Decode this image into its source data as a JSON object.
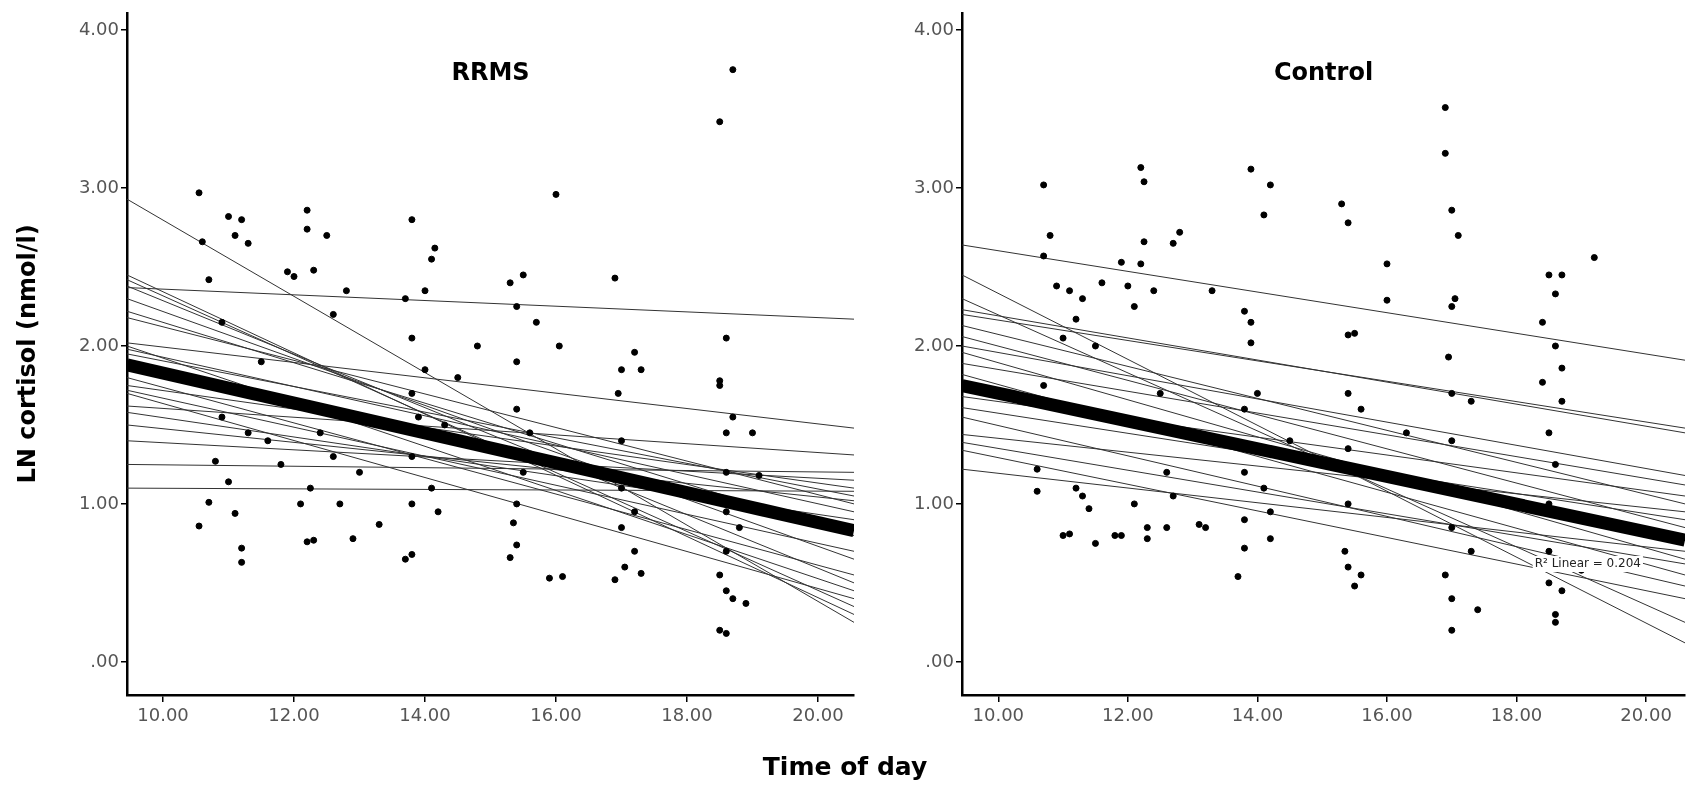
{
  "chart_data": [
    {
      "type": "scatter",
      "title": "RRMS",
      "ylabel": "LN cortisol (nmol/l)",
      "xlabel": "Time of day",
      "xlim": [
        9.45,
        20.55
      ],
      "ylim": [
        -0.21,
        4.11
      ],
      "xticks": [
        {
          "value": 10,
          "label": "10.00"
        },
        {
          "value": 12,
          "label": "12.00"
        },
        {
          "value": 14,
          "label": "14.00"
        },
        {
          "value": 16,
          "label": "16.00"
        },
        {
          "value": 18,
          "label": "18.00"
        },
        {
          "value": 20,
          "label": "20.00"
        }
      ],
      "yticks": [
        {
          "value": 0,
          "label": ".00"
        },
        {
          "value": 1,
          "label": "1.00"
        },
        {
          "value": 2,
          "label": "2.00"
        },
        {
          "value": 3,
          "label": "3.00"
        },
        {
          "value": 4,
          "label": "4.00"
        }
      ],
      "grid": false,
      "legend": false,
      "series": [
        {
          "type": "scatter",
          "marker": "circle",
          "color": "#000000",
          "x": [
            10.55,
            10.6,
            10.7,
            10.55,
            10.7,
            10.8,
            10.9,
            11.0,
            11.1,
            11.2,
            11.3,
            11.0,
            11.2,
            11.2,
            11.1,
            10.9,
            11.3,
            11.5,
            11.6,
            11.8,
            11.9,
            12.0,
            12.1,
            12.2,
            12.2,
            12.3,
            12.25,
            12.3,
            12.2,
            12.4,
            12.5,
            12.6,
            12.8,
            12.6,
            12.7,
            12.9,
            13.3,
            13.0,
            13.8,
            13.7,
            13.8,
            13.8,
            13.8,
            13.8,
            13.7,
            13.8,
            13.9,
            14.0,
            14.1,
            14.15,
            14.0,
            14.1,
            14.2,
            14.3,
            14.5,
            14.8,
            15.3,
            15.4,
            15.4,
            15.4,
            15.4,
            15.35,
            15.4,
            15.3,
            15.5,
            15.5,
            15.6,
            15.7,
            15.9,
            16.0,
            16.05,
            16.1,
            16.9,
            16.95,
            17.0,
            17.0,
            17.0,
            17.0,
            17.05,
            16.9,
            17.2,
            17.3,
            17.2,
            17.3,
            17.2,
            18.5,
            18.7,
            18.6,
            18.5,
            18.5,
            18.6,
            18.7,
            18.6,
            18.6,
            18.6,
            18.5,
            18.6,
            18.5,
            18.6,
            18.7,
            18.8,
            18.9,
            19.0,
            19.1
          ],
          "values": [
            2.97,
            2.66,
            2.42,
            0.86,
            1.01,
            1.27,
            2.15,
            2.82,
            2.7,
            2.8,
            2.65,
            1.14,
            0.72,
            0.63,
            0.94,
            1.55,
            1.45,
            1.9,
            1.4,
            1.25,
            2.47,
            2.44,
            1.0,
            2.86,
            2.74,
            2.48,
            1.1,
            0.77,
            0.76,
            1.45,
            2.7,
            2.2,
            2.35,
            1.3,
            1.0,
            0.78,
            0.87,
            1.2,
            2.8,
            2.3,
            2.05,
            1.7,
            1.3,
            1.0,
            0.65,
            0.68,
            1.55,
            2.35,
            2.55,
            2.62,
            1.85,
            1.1,
            0.95,
            1.5,
            1.8,
            2.0,
            2.4,
            2.25,
            1.9,
            1.6,
            1.0,
            0.88,
            0.74,
            0.66,
            2.45,
            1.2,
            1.45,
            2.15,
            0.53,
            2.96,
            2.0,
            0.54,
            2.43,
            1.7,
            1.85,
            1.4,
            1.1,
            0.85,
            0.6,
            0.52,
            1.96,
            1.85,
            0.95,
            0.56,
            0.7,
            3.42,
            3.75,
            2.05,
            1.78,
            1.75,
            1.45,
            1.55,
            1.2,
            0.95,
            0.7,
            0.55,
            0.45,
            0.2,
            0.18,
            0.4,
            0.85,
            0.37,
            1.45,
            1.18
          ]
        },
        {
          "type": "line",
          "color": "#333333",
          "x": [
            9.45,
            20.55
          ],
          "values": [
            2.93,
            0.25
          ]
        },
        {
          "type": "line",
          "color": "#333333",
          "x": [
            9.45,
            20.55
          ],
          "values": [
            2.37,
            2.17
          ]
        },
        {
          "type": "line",
          "color": "#333333",
          "x": [
            9.45,
            20.55
          ],
          "values": [
            2.45,
            0.3
          ]
        },
        {
          "type": "line",
          "color": "#333333",
          "x": [
            9.45,
            20.55
          ],
          "values": [
            2.42,
            0.35
          ]
        },
        {
          "type": "line",
          "color": "#333333",
          "x": [
            9.45,
            20.55
          ],
          "values": [
            2.38,
            0.5
          ]
        },
        {
          "type": "line",
          "color": "#333333",
          "x": [
            9.45,
            20.55
          ],
          "values": [
            2.3,
            0.65
          ]
        },
        {
          "type": "line",
          "color": "#333333",
          "x": [
            9.45,
            20.55
          ],
          "values": [
            2.22,
            0.8
          ]
        },
        {
          "type": "line",
          "color": "#333333",
          "x": [
            9.45,
            20.55
          ],
          "values": [
            2.18,
            1.0
          ]
        },
        {
          "type": "line",
          "color": "#333333",
          "x": [
            9.45,
            20.55
          ],
          "values": [
            2.02,
            1.48
          ]
        },
        {
          "type": "line",
          "color": "#333333",
          "x": [
            9.45,
            20.55
          ],
          "values": [
            2.0,
            0.45
          ]
        },
        {
          "type": "line",
          "color": "#333333",
          "x": [
            9.45,
            20.55
          ],
          "values": [
            1.98,
            0.95
          ]
        },
        {
          "type": "line",
          "color": "#333333",
          "x": [
            9.45,
            20.55
          ],
          "values": [
            1.95,
            1.05
          ]
        },
        {
          "type": "line",
          "color": "#333333",
          "x": [
            9.45,
            20.55
          ],
          "values": [
            1.8,
            0.55
          ]
        },
        {
          "type": "line",
          "color": "#333333",
          "x": [
            9.45,
            20.55
          ],
          "values": [
            1.75,
            1.1
          ]
        },
        {
          "type": "line",
          "color": "#333333",
          "x": [
            9.45,
            20.55
          ],
          "values": [
            1.72,
            0.7
          ]
        },
        {
          "type": "line",
          "color": "#333333",
          "x": [
            9.45,
            20.55
          ],
          "values": [
            1.7,
            0.4
          ]
        },
        {
          "type": "line",
          "color": "#333333",
          "x": [
            9.45,
            20.55
          ],
          "values": [
            1.62,
            1.31
          ]
        },
        {
          "type": "line",
          "color": "#333333",
          "x": [
            9.45,
            20.55
          ],
          "values": [
            1.58,
            0.9
          ]
        },
        {
          "type": "line",
          "color": "#333333",
          "x": [
            9.45,
            20.55
          ],
          "values": [
            1.5,
            1.02
          ]
        },
        {
          "type": "line",
          "color": "#333333",
          "x": [
            9.45,
            20.55
          ],
          "values": [
            1.4,
            1.15
          ]
        },
        {
          "type": "line",
          "color": "#333333",
          "x": [
            9.45,
            20.55
          ],
          "values": [
            1.25,
            1.2
          ]
        },
        {
          "type": "line",
          "color": "#333333",
          "x": [
            9.45,
            20.55
          ],
          "values": [
            1.1,
            1.08
          ]
        },
        {
          "type": "line",
          "color": "#000000",
          "x": [
            9.45,
            20.55
          ],
          "values": [
            1.88,
            0.83
          ]
        }
      ]
    },
    {
      "type": "scatter",
      "title": "Control",
      "xlim": [
        9.44,
        20.6
      ],
      "ylim": [
        -0.21,
        4.11
      ],
      "xticks": [
        {
          "value": 10,
          "label": "10.00"
        },
        {
          "value": 12,
          "label": "12.00"
        },
        {
          "value": 14,
          "label": "14.00"
        },
        {
          "value": 16,
          "label": "16.00"
        },
        {
          "value": 18,
          "label": "18.00"
        },
        {
          "value": 20,
          "label": "20.00"
        }
      ],
      "yticks": [
        {
          "value": 0,
          "label": ".00"
        },
        {
          "value": 1,
          "label": "1.00"
        },
        {
          "value": 2,
          "label": "2.00"
        },
        {
          "value": 3,
          "label": "3.00"
        },
        {
          "value": 4,
          "label": "4.00"
        }
      ],
      "grid": false,
      "legend": false,
      "annotations": [
        {
          "text": "R² Linear = 0.204",
          "x": 19.1,
          "y": 0.62
        }
      ],
      "series": [
        {
          "type": "scatter",
          "marker": "circle",
          "color": "#000000",
          "x": [
            10.7,
            10.8,
            10.7,
            10.6,
            10.6,
            10.7,
            10.9,
            11.0,
            11.1,
            11.2,
            11.3,
            11.0,
            11.1,
            11.2,
            11.3,
            11.4,
            11.5,
            11.6,
            11.5,
            11.8,
            11.9,
            11.9,
            12.0,
            12.1,
            12.2,
            12.2,
            12.25,
            12.25,
            12.1,
            12.3,
            12.3,
            12.4,
            12.5,
            12.6,
            12.7,
            12.8,
            12.7,
            12.6,
            13.1,
            13.2,
            13.3,
            13.8,
            13.9,
            13.9,
            13.8,
            13.8,
            13.8,
            13.7,
            13.8,
            13.9,
            14.1,
            14.2,
            14.0,
            14.1,
            14.2,
            14.2,
            14.5,
            15.3,
            15.4,
            15.5,
            15.4,
            15.4,
            15.4,
            15.4,
            15.35,
            15.4,
            15.5,
            15.6,
            15.6,
            16.0,
            16.0,
            16.3,
            16.9,
            16.9,
            17.0,
            17.1,
            17.05,
            17.0,
            16.95,
            17.0,
            17.0,
            17.0,
            16.9,
            17.0,
            17.0,
            17.3,
            17.4,
            17.3,
            18.4,
            18.5,
            18.6,
            18.7,
            18.6,
            18.7,
            18.7,
            18.4,
            18.5,
            18.6,
            18.5,
            18.5,
            18.5,
            18.6,
            18.6,
            18.7,
            19.2,
            19.0
          ],
          "values": [
            3.02,
            2.7,
            2.57,
            1.08,
            1.22,
            1.75,
            2.38,
            2.05,
            2.35,
            2.17,
            2.3,
            0.8,
            0.81,
            1.1,
            1.05,
            0.97,
            2.0,
            2.4,
            0.75,
            0.8,
            0.8,
            2.53,
            2.38,
            2.25,
            2.52,
            3.13,
            3.04,
            2.66,
            1.0,
            0.78,
            0.85,
            2.35,
            1.7,
            1.2,
            2.65,
            2.72,
            1.05,
            0.85,
            0.87,
            0.85,
            2.35,
            2.22,
            2.15,
            2.02,
            1.6,
            1.2,
            0.9,
            0.54,
            0.72,
            3.12,
            2.83,
            3.02,
            1.7,
            1.1,
            0.95,
            0.78,
            1.4,
            2.9,
            2.78,
            2.08,
            2.07,
            1.7,
            1.35,
            1.0,
            0.7,
            0.6,
            0.48,
            0.55,
            1.6,
            2.52,
            2.29,
            1.45,
            3.51,
            3.22,
            2.86,
            2.7,
            2.3,
            2.25,
            1.93,
            1.7,
            1.4,
            0.85,
            0.55,
            0.4,
            0.2,
            1.65,
            0.33,
            0.7,
            2.15,
            2.45,
            2.33,
            2.45,
            2.0,
            1.86,
            1.65,
            1.77,
            1.45,
            1.25,
            1.0,
            0.7,
            0.5,
            0.3,
            0.25,
            0.45,
            2.56,
            0.58
          ]
        },
        {
          "type": "line",
          "color": "#333333",
          "x": [
            9.44,
            20.6
          ],
          "values": [
            2.64,
            1.91
          ]
        },
        {
          "type": "line",
          "color": "#333333",
          "x": [
            9.44,
            20.6
          ],
          "values": [
            2.45,
            0.12
          ]
        },
        {
          "type": "line",
          "color": "#333333",
          "x": [
            9.44,
            20.6
          ],
          "values": [
            2.3,
            0.25
          ]
        },
        {
          "type": "line",
          "color": "#333333",
          "x": [
            9.44,
            20.6
          ],
          "values": [
            2.23,
            1.45
          ]
        },
        {
          "type": "line",
          "color": "#333333",
          "x": [
            9.44,
            20.6
          ],
          "values": [
            2.2,
            1.48
          ]
        },
        {
          "type": "line",
          "color": "#333333",
          "x": [
            9.44,
            20.6
          ],
          "values": [
            2.13,
            1.0
          ]
        },
        {
          "type": "line",
          "color": "#333333",
          "x": [
            9.44,
            20.6
          ],
          "values": [
            2.06,
            0.85
          ]
        },
        {
          "type": "line",
          "color": "#333333",
          "x": [
            9.44,
            20.6
          ],
          "values": [
            2.0,
            1.18
          ]
        },
        {
          "type": "line",
          "color": "#333333",
          "x": [
            9.44,
            20.6
          ],
          "values": [
            1.96,
            0.65
          ]
        },
        {
          "type": "line",
          "color": "#333333",
          "x": [
            9.44,
            20.6
          ],
          "values": [
            1.89,
            1.12
          ]
        },
        {
          "type": "line",
          "color": "#333333",
          "x": [
            9.44,
            20.6
          ],
          "values": [
            1.82,
            0.55
          ]
        },
        {
          "type": "line",
          "color": "#333333",
          "x": [
            9.44,
            20.6
          ],
          "values": [
            1.68,
            1.05
          ]
        },
        {
          "type": "line",
          "color": "#333333",
          "x": [
            9.44,
            20.6
          ],
          "values": [
            1.61,
            0.9
          ]
        },
        {
          "type": "line",
          "color": "#333333",
          "x": [
            9.44,
            20.6
          ],
          "values": [
            1.55,
            0.48
          ]
        },
        {
          "type": "line",
          "color": "#333333",
          "x": [
            9.44,
            20.6
          ],
          "values": [
            1.44,
            0.95
          ]
        },
        {
          "type": "line",
          "color": "#333333",
          "x": [
            9.44,
            20.6
          ],
          "values": [
            1.39,
            0.62
          ]
        },
        {
          "type": "line",
          "color": "#333333",
          "x": [
            9.44,
            20.6
          ],
          "values": [
            1.34,
            0.4
          ]
        },
        {
          "type": "line",
          "color": "#333333",
          "x": [
            9.44,
            20.6
          ],
          "values": [
            1.22,
            0.7
          ]
        },
        {
          "type": "line",
          "color": "#000000",
          "x": [
            9.44,
            20.6
          ],
          "values": [
            1.75,
            0.77
          ]
        }
      ]
    }
  ]
}
